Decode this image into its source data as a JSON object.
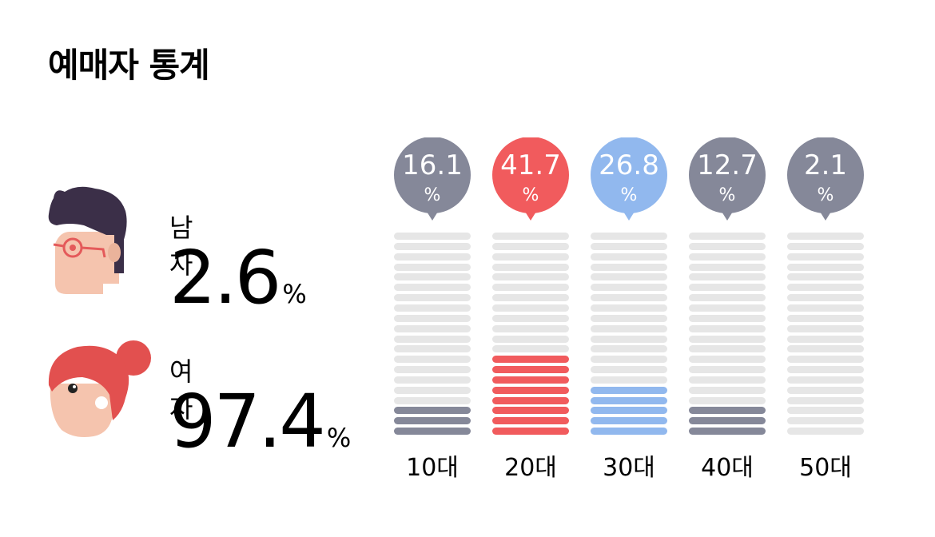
{
  "title": "예매자 통계",
  "gender": {
    "male": {
      "label": "남자",
      "value": "2.6",
      "unit": "%"
    },
    "female": {
      "label": "여자",
      "value": "97.4",
      "unit": "%"
    }
  },
  "colors": {
    "gray": "#858899",
    "red": "#f15b5d",
    "blue": "#91b8ee",
    "empty": "#e6e6e6"
  },
  "age_groups": [
    {
      "label": "10대",
      "percent": "16.1",
      "unit": "%",
      "color": "gray",
      "value": 16.1
    },
    {
      "label": "20대",
      "percent": "41.7",
      "unit": "%",
      "color": "red",
      "value": 41.7
    },
    {
      "label": "30대",
      "percent": "26.8",
      "unit": "%",
      "color": "blue",
      "value": 26.8
    },
    {
      "label": "40대",
      "percent": "12.7",
      "unit": "%",
      "color": "gray",
      "value": 12.7
    },
    {
      "label": "50대",
      "percent": "2.1",
      "unit": "%",
      "color": "gray",
      "value": 2.1
    }
  ]
}
